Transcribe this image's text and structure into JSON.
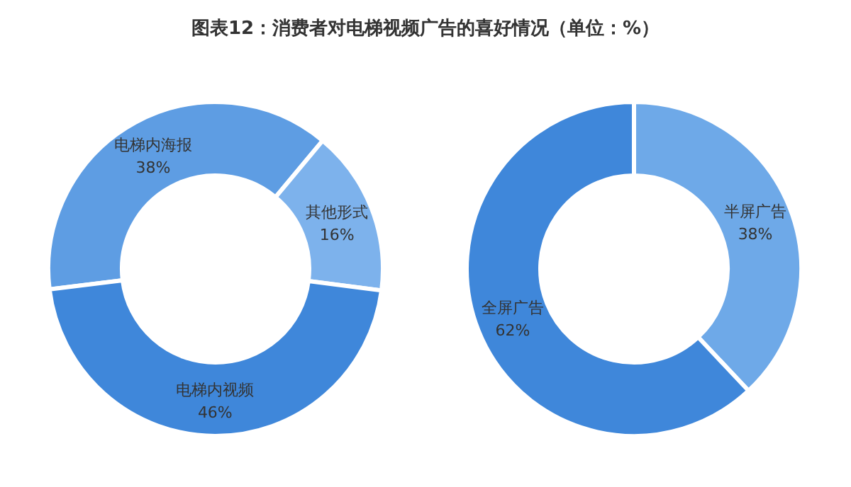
{
  "chart_data": [
    {
      "type": "donut",
      "title": "图表12：消费者对电梯视频广告的喜好情况（单位：%）",
      "categories": [
        "电梯内海报",
        "其他形式",
        "电梯内视频"
      ],
      "values": [
        38,
        16,
        46
      ],
      "colors": [
        "#5e9de3",
        "#7db2ec",
        "#3f87da"
      ],
      "value_labels": [
        "38%",
        "16%",
        "46%"
      ]
    },
    {
      "type": "donut",
      "categories": [
        "半屏广告",
        "全屏广告"
      ],
      "values": [
        38,
        62
      ],
      "colors": [
        "#6ea9e8",
        "#3f87da"
      ],
      "value_labels": [
        "38%",
        "62%"
      ]
    }
  ]
}
